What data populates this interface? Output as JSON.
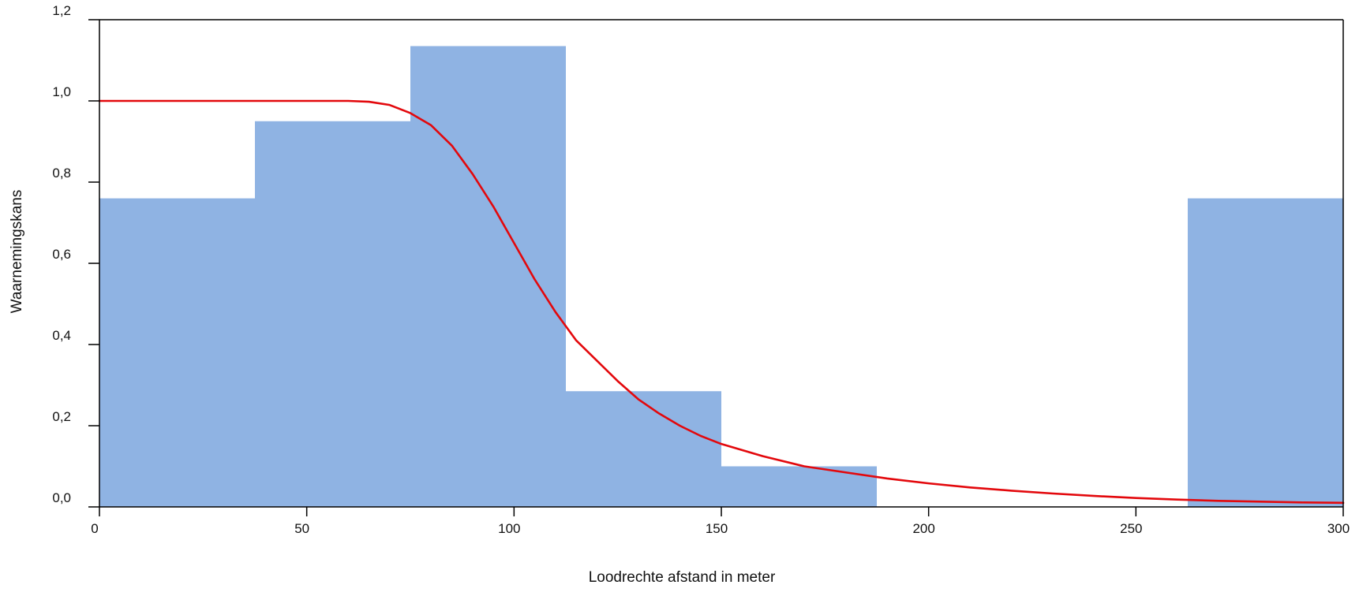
{
  "chart_data": {
    "type": "bar",
    "title": "",
    "xlabel": "Loodrechte afstand in meter",
    "ylabel": "Waarnemingskans",
    "xlim": [
      0,
      300
    ],
    "ylim": [
      0,
      1.2
    ],
    "grid": false,
    "x_ticks": [
      "0",
      "50",
      "100",
      "150",
      "200",
      "250",
      "300"
    ],
    "x_tick_values": [
      0,
      50,
      100,
      150,
      200,
      250,
      300
    ],
    "y_ticks": [
      "0,0",
      "0,2",
      "0,4",
      "0,6",
      "0,8",
      "1,0",
      "1,2"
    ],
    "y_tick_values": [
      0,
      0.2,
      0.4,
      0.6,
      0.8,
      1.0,
      1.2
    ],
    "bins": [
      {
        "x0": 0,
        "x1": 37.5,
        "value": 0.76
      },
      {
        "x0": 37.5,
        "x1": 75,
        "value": 0.95
      },
      {
        "x0": 75,
        "x1": 112.5,
        "value": 1.135
      },
      {
        "x0": 112.5,
        "x1": 150,
        "value": 0.285
      },
      {
        "x0": 150,
        "x1": 187.5,
        "value": 0.1
      },
      {
        "x0": 187.5,
        "x1": 225,
        "value": 0
      },
      {
        "x0": 225,
        "x1": 262.5,
        "value": 0
      },
      {
        "x0": 262.5,
        "x1": 300,
        "value": 0.76
      }
    ],
    "curve": {
      "x": [
        0,
        10,
        20,
        30,
        40,
        50,
        60,
        65,
        70,
        75,
        80,
        85,
        90,
        95,
        100,
        105,
        110,
        115,
        120,
        125,
        130,
        135,
        140,
        145,
        150,
        160,
        170,
        180,
        190,
        200,
        210,
        220,
        230,
        240,
        250,
        260,
        270,
        280,
        290,
        300
      ],
      "y": [
        1.0,
        1.0,
        1.0,
        1.0,
        1.0,
        1.0,
        1.0,
        0.998,
        0.99,
        0.97,
        0.94,
        0.89,
        0.82,
        0.74,
        0.65,
        0.56,
        0.48,
        0.41,
        0.36,
        0.31,
        0.265,
        0.23,
        0.2,
        0.175,
        0.155,
        0.125,
        0.1,
        0.085,
        0.07,
        0.058,
        0.048,
        0.04,
        0.033,
        0.027,
        0.022,
        0.018,
        0.015,
        0.013,
        0.011,
        0.01
      ]
    },
    "colors": {
      "bars": "#8fb3e3",
      "curve": "#e3080c",
      "axis": "#000000"
    }
  }
}
